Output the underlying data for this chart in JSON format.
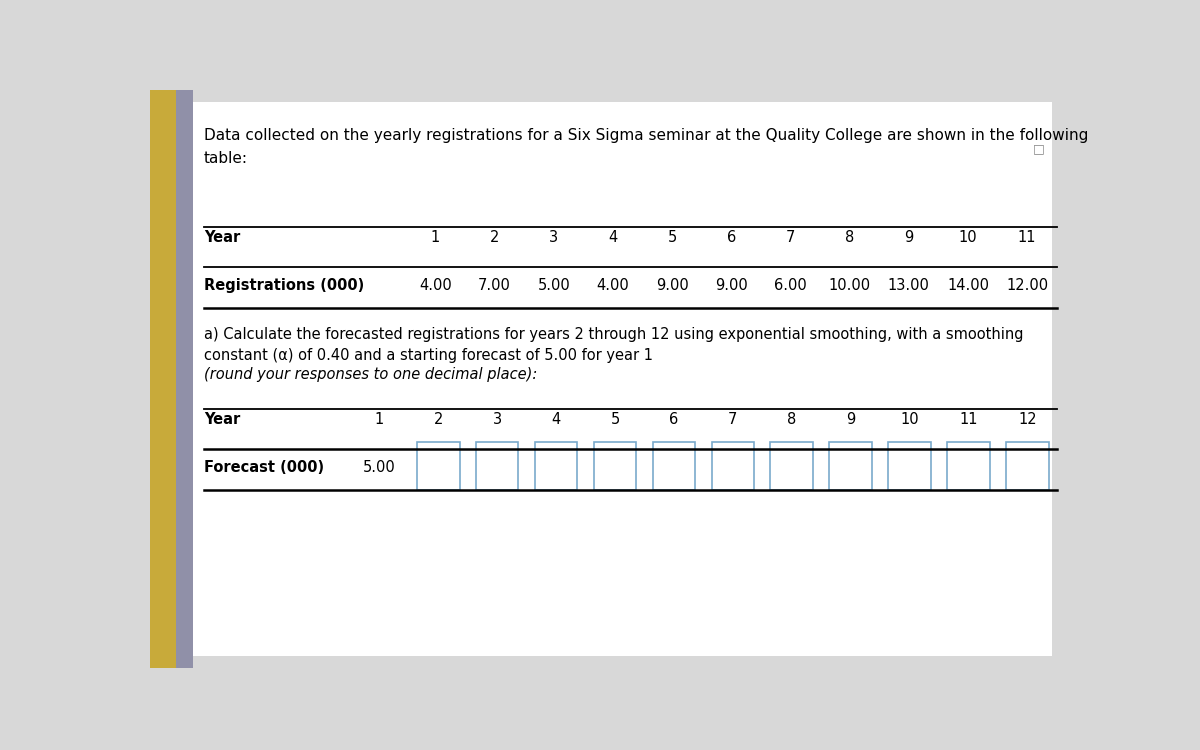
{
  "title_text_line1": "Data collected on the yearly registrations for a Six Sigma seminar at the Quality College are shown in the following",
  "title_text_line2": "table:",
  "bg_color": "#d8d8d8",
  "panel_color": "#ffffff",
  "table1_years": [
    1,
    2,
    3,
    4,
    5,
    6,
    7,
    8,
    9,
    10,
    11
  ],
  "table1_registrations": [
    "4.00",
    "7.00",
    "5.00",
    "4.00",
    "9.00",
    "9.00",
    "6.00",
    "10.00",
    "13.00",
    "14.00",
    "12.00"
  ],
  "table1_row1_label": "Year",
  "table1_row2_label": "Registrations (000)",
  "part_a_plain": "a) Calculate the forecasted registrations for years 2 through 12 using exponential smoothing, with a smoothing\nconstant (α) of 0.40 and a starting forecast of 5.00 for year 1 ",
  "part_a_italic": "(round your responses to one decimal place):",
  "table2_years": [
    1,
    2,
    3,
    4,
    5,
    6,
    7,
    8,
    9,
    10,
    11,
    12
  ],
  "table2_row1_label": "Year",
  "table2_row2_label": "Forecast (000)",
  "table2_forecast_year1": "5.00",
  "left_bar_color": "#c8aa3a",
  "left_bar2_color": "#9090a8",
  "input_box_border": "#7aaacc",
  "line_color": "#333333"
}
